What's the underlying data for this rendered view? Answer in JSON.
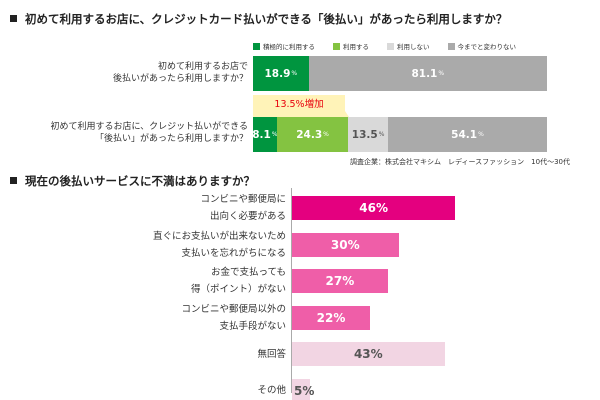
{
  "q1": {
    "title": "初めて利用するお店に、クレジットカード払いができる「後払い」があったら利用しますか？",
    "callout": "13.5%増加",
    "note": "調査企業：株式会社マキシム　レディースファッション　10代〜30代"
  },
  "q2": {
    "title": "現在の後払いサービスに不満はありますか？"
  },
  "chart_data": [
    {
      "type": "bar",
      "stacked": true,
      "orientation": "horizontal",
      "legend_position": "top",
      "legend": [
        {
          "label": "積極的に利用する",
          "color": "#00953f"
        },
        {
          "label": "利用する",
          "color": "#84c341"
        },
        {
          "label": "利用しない",
          "color": "#d9d9d9"
        },
        {
          "label": "今までと変わりない",
          "color": "#aaaaaa"
        }
      ],
      "rows": [
        {
          "label_lines": [
            "初めて利用するお店で",
            "後払いがあったら利用しますか？"
          ],
          "segments": [
            {
              "series": "積極的に利用する",
              "value": 18.9,
              "text": "18.9",
              "color": "#00953f",
              "text_color": "#ffffff"
            },
            {
              "series": "今までと変わりない",
              "value": 81.1,
              "text": "81.1",
              "color": "#aaaaaa",
              "text_color": "#ffffff"
            }
          ]
        },
        {
          "label_lines": [
            "初めて利用するお店に、クレジット払いができる",
            "「後払い」があったら利用しますか？"
          ],
          "segments": [
            {
              "series": "積極的に利用する",
              "value": 8.1,
              "text": "8.1",
              "color": "#00953f",
              "text_color": "#ffffff"
            },
            {
              "series": "利用する",
              "value": 24.3,
              "text": "24.3",
              "color": "#84c341",
              "text_color": "#ffffff"
            },
            {
              "series": "利用しない",
              "value": 13.5,
              "text": "13.5",
              "color": "#d9d9d9",
              "text_color": "#555555"
            },
            {
              "series": "今までと変わりない",
              "value": 54.1,
              "text": "54.1",
              "color": "#aaaaaa",
              "text_color": "#ffffff"
            }
          ]
        }
      ],
      "percent_symbol": "%"
    },
    {
      "type": "bar",
      "orientation": "horizontal",
      "categories": [
        [
          "コンビニや郵便局に",
          "出向く必要がある"
        ],
        [
          "直ぐにお支払いが出来ないため",
          "支払いを忘れがちになる"
        ],
        [
          "お金で支払っても",
          "得（ポイント）がない"
        ],
        [
          "コンビニや郵便局以外の",
          "支払手段がない"
        ],
        [
          "無回答"
        ],
        [
          "その他"
        ]
      ],
      "values": [
        46,
        30,
        27,
        22,
        43,
        5
      ],
      "value_labels": [
        "46%",
        "30%",
        "27%",
        "22%",
        "43%",
        "5%"
      ],
      "colors": [
        "#e4007f",
        "#ef5ea8",
        "#ef5ea8",
        "#ef5ea8",
        "#f2d5e3",
        "#f2d5e3"
      ],
      "text_colors": [
        "#ffffff",
        "#ffffff",
        "#ffffff",
        "#ffffff",
        "#555555",
        "#555555"
      ],
      "xlim": [
        0,
        100
      ]
    }
  ]
}
